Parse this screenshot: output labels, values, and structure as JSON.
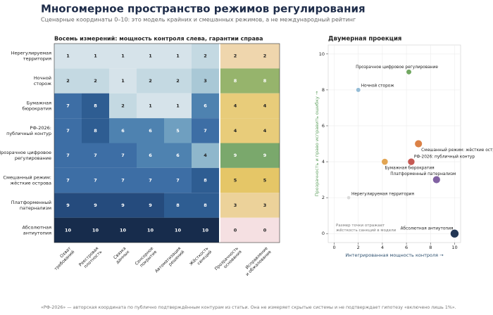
{
  "title": "Многомерное пространство режимов регулирования",
  "subtitle": "Сценарные координаты 0–10: это модель крайних и смешанных режимов, а не международный рейтинг",
  "footer": "«РФ-2026» — авторская координата по публично подтверждённым контурам из статьи. Она не измеряет скрытые системы и не подтверждает гипотезу «включено лишь 1%».",
  "chart_data": [
    {
      "type": "heatmap",
      "title": "Восемь измерений: мощность контроля слева, гарантии справа",
      "rows": [
        [
          "Нерегулируемая",
          "территория"
        ],
        [
          "Ночной",
          "сторож"
        ],
        [
          "Бумажная",
          "бюрократия"
        ],
        [
          "РФ-2026:",
          "публичный контур"
        ],
        [
          "Прозрачное цифровое",
          "регулирование"
        ],
        [
          "Смешанный режим:",
          "жёсткие острова"
        ],
        [
          "Платформенный",
          "патернализм"
        ],
        [
          "Абсолютная",
          "антиутопия"
        ]
      ],
      "control_columns": [
        [
          "Охват",
          "требований"
        ],
        [
          "Реестровая",
          "плотность"
        ],
        [
          "Связка",
          "данных"
        ],
        [
          "Сенсорное",
          "покрытие"
        ],
        [
          "Автоматизация",
          "решений"
        ],
        [
          "Жёсткость",
          "санкций"
        ]
      ],
      "guarantee_columns": [
        [
          "Прозрачность",
          "основания"
        ],
        [
          "Исправление",
          "и обжалование"
        ]
      ],
      "control_values": [
        [
          1,
          1,
          1,
          1,
          1,
          2
        ],
        [
          2,
          2,
          1,
          2,
          2,
          3
        ],
        [
          7,
          8,
          2,
          1,
          1,
          6
        ],
        [
          7,
          8,
          6,
          6,
          5,
          7
        ],
        [
          7,
          7,
          7,
          6,
          6,
          4
        ],
        [
          7,
          7,
          7,
          7,
          7,
          8
        ],
        [
          9,
          9,
          9,
          9,
          8,
          8
        ],
        [
          10,
          10,
          10,
          10,
          10,
          10
        ]
      ],
      "guarantee_values": [
        [
          2,
          2
        ],
        [
          8,
          8
        ],
        [
          4,
          4
        ],
        [
          4,
          4
        ],
        [
          9,
          9
        ],
        [
          5,
          5
        ],
        [
          3,
          3
        ],
        [
          0,
          0
        ]
      ]
    },
    {
      "type": "scatter",
      "title": "Двумерная проекция",
      "xlabel": "Интегрированная мощность контроля →",
      "ylabel": "Прозрачность и право исправить ошибку →",
      "labels": [
        "Нерегулируемая территория",
        "Ночной сторож",
        "Бумажная бюрократия",
        "РФ-2026: публичный контур",
        "Прозрачное цифровое регулирование",
        "Смешанный режим: жёсткие острова",
        "Платформенный патернализм",
        "Абсолютная антиутопия"
      ],
      "x": [
        1.2,
        2,
        4.2,
        6.4,
        6.2,
        7,
        8.5,
        10
      ],
      "values": [
        2,
        8,
        4,
        4,
        9,
        5,
        3,
        0
      ],
      "sizes": [
        2,
        3,
        6,
        7,
        4,
        8,
        8,
        10
      ],
      "colors": [
        "#d9d9d9",
        "#8fb8d4",
        "#e0a04a",
        "#c2504a",
        "#6aa35a",
        "#d97a3c",
        "#7a5a9e",
        "#172c4c"
      ],
      "note": [
        "Размер точки отражает",
        "жёсткость санкций в модели"
      ],
      "xlim": [
        -0.5,
        10.5
      ],
      "ylim": [
        -0.5,
        10.5
      ],
      "xticks": [
        0,
        2,
        4,
        6,
        8,
        10
      ],
      "yticks": [
        0,
        2,
        4,
        6,
        8,
        10
      ],
      "grid": true
    }
  ]
}
